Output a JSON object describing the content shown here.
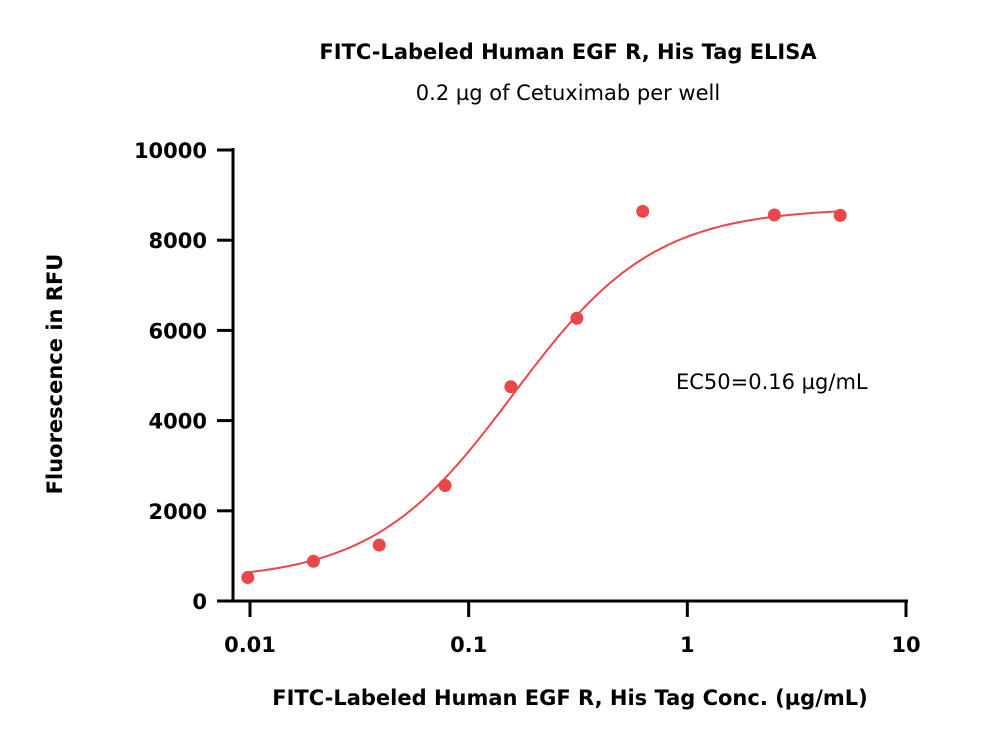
{
  "chart_data": {
    "type": "scatter",
    "title": "FITC-Labeled Human EGF R, His Tag ELISA",
    "subtitle": "0.2 µg of Cetuximab per well",
    "xlabel": "FITC-Labeled Human EGF R, His Tag Conc. (µg/mL)",
    "ylabel": "Fluorescence in RFU",
    "x_scale": "log",
    "xlim": [
      0.01,
      10
    ],
    "ylim": [
      0,
      10000
    ],
    "x_ticks": [
      0.01,
      0.1,
      1,
      10
    ],
    "x_tick_labels": [
      "0.01",
      "0.1",
      "1",
      "10"
    ],
    "y_ticks": [
      0,
      2000,
      4000,
      6000,
      8000,
      10000
    ],
    "y_tick_labels": [
      "0",
      "2000",
      "4000",
      "6000",
      "8000",
      "10000"
    ],
    "grid": false,
    "annotation": "EC50=0.16 µg/mL",
    "colors": {
      "series": "#e8474b",
      "axis": "#000000"
    },
    "series": [
      {
        "x": [
          0.00977,
          0.0195,
          0.039,
          0.078,
          0.156,
          0.3125,
          0.625,
          2.5,
          5
        ],
        "y": [
          520,
          880,
          1240,
          2560,
          4750,
          6270,
          8640,
          8560,
          8550
        ]
      }
    ],
    "fit_curve": {
      "model": "4PL",
      "bottom": 450,
      "top": 8720,
      "ec50": 0.16,
      "hill": 1.35
    }
  }
}
